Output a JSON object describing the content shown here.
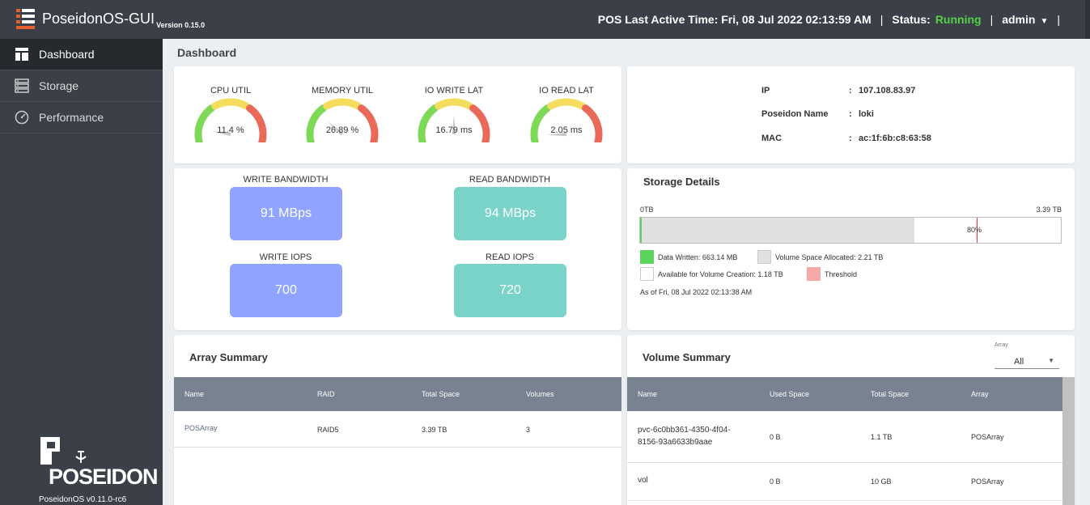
{
  "header": {
    "app_name": "PoseidonOS-GUI",
    "version": "Version 0.15.0",
    "last_active_label": "POS Last Active Time: Fri, 08 Jul 2022 02:13:59 AM",
    "sep1": "|",
    "status_label": "Status:",
    "status_value": "Running",
    "sep2": "|",
    "user": "admin",
    "sep3": "|"
  },
  "sidebar": {
    "items": [
      {
        "label": "Dashboard",
        "icon": "dashboard-icon",
        "active": true
      },
      {
        "label": "Storage",
        "icon": "storage-icon",
        "active": false
      },
      {
        "label": "Performance",
        "icon": "performance-icon",
        "active": false
      }
    ],
    "logo_text": "POSEIDON",
    "footer_version": "PoseidonOS v0.11.0-rc6"
  },
  "page": {
    "title": "Dashboard"
  },
  "gauges": [
    {
      "title": "CPU UTIL",
      "value": "11.4 %",
      "level": 0.114
    },
    {
      "title": "MEMORY UTIL",
      "value": "26.89 %",
      "level": 0.269
    },
    {
      "title": "IO WRITE LAT",
      "value": "16.79 ms",
      "level": 0.5
    },
    {
      "title": "IO READ LAT",
      "value": "2.05 ms",
      "level": 0.06
    }
  ],
  "system_info": {
    "rows": [
      {
        "key": "IP",
        "colon": ":",
        "value": "107.108.83.97"
      },
      {
        "key": "Poseidon Name",
        "colon": ":",
        "value": "loki"
      },
      {
        "key": "MAC",
        "colon": ":",
        "value": "ac:1f:6b:c8:63:58"
      }
    ]
  },
  "bandwidth": {
    "write_bw_label": "WRITE BANDWIDTH",
    "write_bw_value": "91 MBps",
    "read_bw_label": "READ BANDWIDTH",
    "read_bw_value": "94 MBps",
    "write_iops_label": "WRITE IOPS",
    "write_iops_value": "700",
    "read_iops_label": "READ IOPS",
    "read_iops_value": "720"
  },
  "colors": {
    "write_box": "#8ea4ff",
    "read_box": "#79d3c9",
    "data_written": "#5cd35c",
    "allocated": "#e0e0e0",
    "threshold": "#f4a8a8",
    "status_running": "#56d049"
  },
  "storage": {
    "title": "Storage Details",
    "min_label": "0TB",
    "max_label": "3.39 TB",
    "threshold_label": "80%",
    "written_fraction": 0.004,
    "allocated_fraction": 0.652,
    "threshold_fraction": 0.8,
    "legend": {
      "data_written": "Data Written: 663.14 MB",
      "allocated": "Volume Space Allocated: 2.21 TB",
      "available": "Available for Volume Creation: 1.18 TB",
      "threshold": "Threshold"
    },
    "as_of": "As of Fri, 08 Jul 2022 02:13:38 AM"
  },
  "array_summary": {
    "title": "Array Summary",
    "columns": [
      "Name",
      "RAID",
      "Total Space",
      "Volumes"
    ],
    "rows": [
      [
        "POSArray",
        "RAID5",
        "3.39 TB",
        "3"
      ]
    ]
  },
  "volume_summary": {
    "title": "Volume Summary",
    "select_label": "Array",
    "select_value": "All",
    "columns": [
      "Name",
      "Used Space",
      "Total Space",
      "Array"
    ],
    "rows": [
      {
        "name_line1": "pvc-6c0bb361-4350-4f04-",
        "name_line2": "8156-93a6633b9aae",
        "used": "0 B",
        "total": "1.1 TB",
        "array": "POSArray"
      },
      {
        "name_line1": "vol",
        "name_line2": "",
        "used": "0 B",
        "total": "10 GB",
        "array": "POSArray"
      }
    ]
  }
}
